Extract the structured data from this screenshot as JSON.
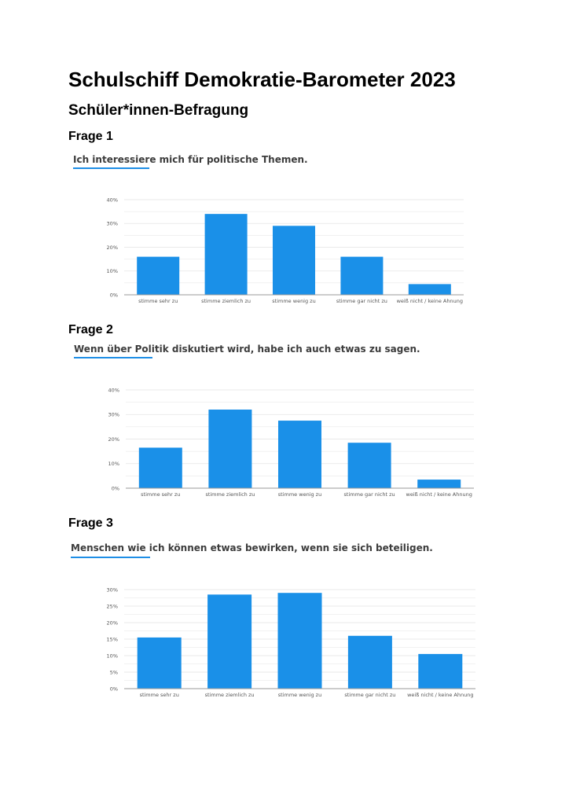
{
  "document": {
    "title": "Schulschiff Demokratie-Barometer 2023",
    "subtitle": "Schüler*innen-Befragung"
  },
  "colors": {
    "bar": "#1a90e8",
    "underline": "#1e8ee6",
    "grid": "#e3e3e3",
    "axis": "#9a9a9a",
    "text": "#555555"
  },
  "questions": [
    {
      "label": "Frage 1",
      "text": "Ich interessiere mich für politische Themen."
    },
    {
      "label": "Frage 2",
      "text": "Wenn über Politik diskutiert wird, habe ich auch etwas zu sagen."
    },
    {
      "label": "Frage 3",
      "text": "Menschen wie ich können etwas bewirken, wenn sie sich beteiligen."
    }
  ],
  "chart_data": [
    {
      "type": "bar",
      "title": "Ich interessiere mich für politische Themen.",
      "categories": [
        "stimme sehr zu",
        "stimme ziemlich zu",
        "stimme wenig zu",
        "stimme gar nicht zu",
        "weiß nicht / keine Ahnung"
      ],
      "values": [
        16,
        34,
        29,
        16,
        4.5
      ],
      "ylim": [
        0,
        40
      ],
      "yticks": [
        0,
        10,
        20,
        30,
        40
      ],
      "yticklabels": [
        "0%",
        "10%",
        "20%",
        "30%",
        "40%"
      ],
      "grid": true,
      "legend": "none"
    },
    {
      "type": "bar",
      "title": "Wenn über Politik diskutiert wird, habe ich auch etwas zu sagen.",
      "categories": [
        "stimme sehr zu",
        "stimme ziemlich zu",
        "stimme wenig zu",
        "stimme gar nicht zu",
        "weiß nicht / keine Ahnung"
      ],
      "values": [
        16.5,
        32,
        27.5,
        18.5,
        3.5
      ],
      "ylim": [
        0,
        40
      ],
      "yticks": [
        0,
        10,
        20,
        30,
        40
      ],
      "yticklabels": [
        "0%",
        "10%",
        "20%",
        "30%",
        "40%"
      ],
      "grid": true,
      "legend": "none"
    },
    {
      "type": "bar",
      "title": "Menschen wie ich können etwas bewirken, wenn sie sich beteiligen.",
      "categories": [
        "stimme sehr zu",
        "stimme ziemlich zu",
        "stimme wenig zu",
        "stimme gar nicht zu",
        "weiß nicht / keine Ahnung"
      ],
      "values": [
        15.5,
        28.5,
        29,
        16,
        10.5
      ],
      "ylim": [
        0,
        30
      ],
      "yticks": [
        0,
        5,
        10,
        15,
        20,
        25,
        30
      ],
      "yticklabels": [
        "0%",
        "5%",
        "10%",
        "15%",
        "20%",
        "25%",
        "30%"
      ],
      "grid": true,
      "legend": "none"
    }
  ]
}
